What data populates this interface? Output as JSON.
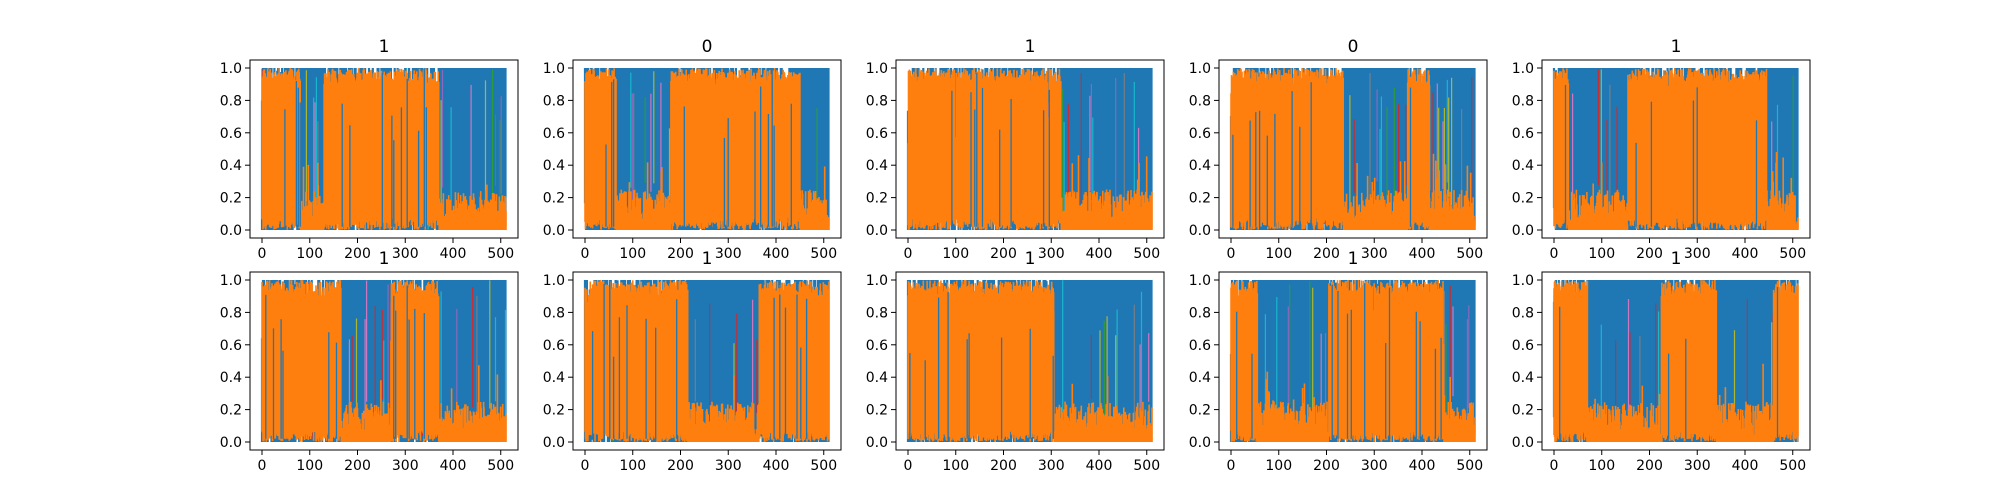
{
  "chart_data": {
    "type": "area",
    "layout": "grid 2x5",
    "xlim": [
      0,
      511
    ],
    "ylim": [
      0,
      1
    ],
    "xticks": [
      0,
      100,
      200,
      300,
      400,
      500
    ],
    "yticks": [
      0.0,
      0.2,
      0.4,
      0.6,
      0.8,
      1.0
    ],
    "ytick_labels": [
      "0.0",
      "0.2",
      "0.4",
      "0.6",
      "0.8",
      "1.0"
    ],
    "grid": false,
    "legend": "none",
    "colors": {
      "series_a": "#1f77b4",
      "series_b": "#ff7f0e",
      "accents": [
        "#17becf",
        "#2ca02c",
        "#bcbd22",
        "#9467bd",
        "#e377c2",
        "#7f7f7f",
        "#d62728"
      ]
    },
    "panels": [
      {
        "title": "1",
        "dominant_b": [
          [
            0,
            80
          ],
          [
            130,
            370
          ]
        ]
      },
      {
        "title": "0",
        "dominant_b": [
          [
            0,
            65
          ],
          [
            180,
            450
          ]
        ]
      },
      {
        "title": "1",
        "dominant_b": [
          [
            0,
            320
          ]
        ]
      },
      {
        "title": "0",
        "dominant_b": [
          [
            0,
            235
          ],
          [
            370,
            415
          ]
        ]
      },
      {
        "title": "1",
        "dominant_b": [
          [
            0,
            30
          ],
          [
            155,
            445
          ]
        ]
      },
      {
        "title": "1",
        "dominant_b": [
          [
            0,
            165
          ],
          [
            270,
            370
          ]
        ]
      },
      {
        "title": "1",
        "dominant_b": [
          [
            0,
            215
          ],
          [
            365,
            511
          ]
        ]
      },
      {
        "title": "1",
        "dominant_b": [
          [
            0,
            305
          ]
        ]
      },
      {
        "title": "1",
        "dominant_b": [
          [
            0,
            55
          ],
          [
            205,
            445
          ]
        ]
      },
      {
        "title": "1",
        "dominant_b": [
          [
            0,
            70
          ],
          [
            225,
            340
          ],
          [
            460,
            511
          ]
        ]
      }
    ]
  }
}
